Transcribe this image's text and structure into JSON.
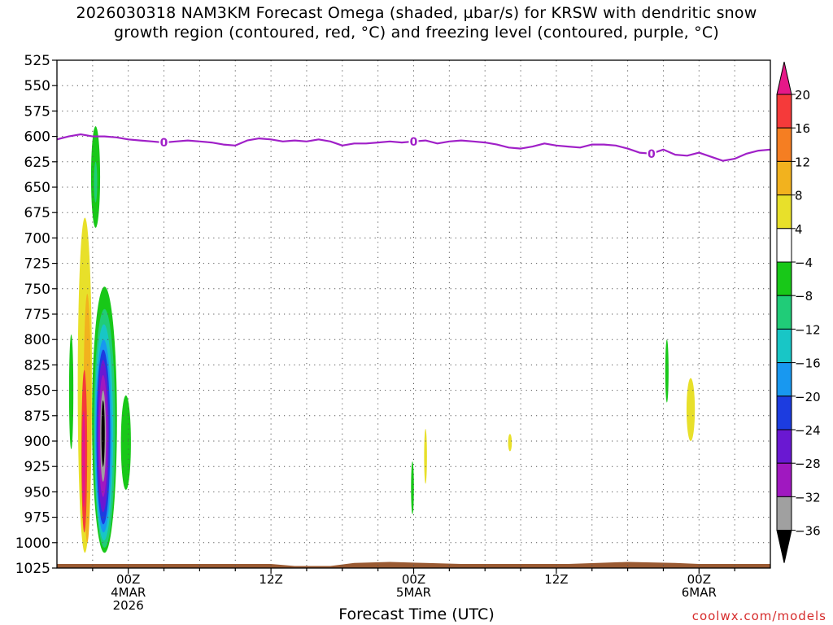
{
  "title_line1": "2026030318 NAM3KM Forecast Omega (shaded, µbar/s) for KRSW with dendritic snow",
  "title_line2": "growth region (contoured, red, °C) and freezing level (contoured, purple, °C)",
  "xaxis_title": "Forecast Time (UTC)",
  "credit": "coolwx.com/models",
  "colors": {
    "freezing_level": "#a020c8",
    "ground": "#9a5a32",
    "grid": "#555555"
  },
  "chart_data": {
    "type": "heatmap",
    "x_range_hours": [
      -3,
      57
    ],
    "y_range_mb": [
      525,
      1025
    ],
    "y_ticks": [
      525,
      550,
      575,
      600,
      625,
      650,
      675,
      700,
      725,
      750,
      775,
      800,
      825,
      850,
      875,
      900,
      925,
      950,
      975,
      1000,
      1025
    ],
    "x_ticks": [
      {
        "hour": 3,
        "label1": "00Z",
        "label2": "4MAR",
        "label3": "2026"
      },
      {
        "hour": 15,
        "label1": "12Z",
        "label2": "",
        "label3": ""
      },
      {
        "hour": 27,
        "label1": "00Z",
        "label2": "5MAR",
        "label3": ""
      },
      {
        "hour": 39,
        "label1": "12Z",
        "label2": "",
        "label3": ""
      },
      {
        "hour": 51,
        "label1": "00Z",
        "label2": "6MAR",
        "label3": ""
      }
    ],
    "colorbar": {
      "labels": [
        20,
        16,
        12,
        8,
        4,
        -4,
        -8,
        -12,
        -16,
        -20,
        -24,
        -28,
        -32,
        -36
      ],
      "colors": [
        "#e61888",
        "#f53a3a",
        "#f57e22",
        "#f2b21e",
        "#e8e02a",
        "#ffffff",
        "#18c818",
        "#20cc78",
        "#18c6c6",
        "#1898f0",
        "#1c3ce0",
        "#6a18d2",
        "#a018c0",
        "#a0a0a0",
        "#000000"
      ]
    },
    "freezing_level": {
      "label": "0",
      "label_hours": [
        6,
        27,
        47
      ],
      "points": [
        [
          -3,
          603
        ],
        [
          -2,
          600
        ],
        [
          -1,
          598
        ],
        [
          0,
          600
        ],
        [
          1,
          600
        ],
        [
          2,
          601
        ],
        [
          3,
          603
        ],
        [
          4,
          604
        ],
        [
          5,
          605
        ],
        [
          6,
          606
        ],
        [
          7,
          605
        ],
        [
          8,
          604
        ],
        [
          9,
          605
        ],
        [
          10,
          606
        ],
        [
          11,
          608
        ],
        [
          12,
          609
        ],
        [
          13,
          604
        ],
        [
          14,
          602
        ],
        [
          15,
          603
        ],
        [
          16,
          605
        ],
        [
          17,
          604
        ],
        [
          18,
          605
        ],
        [
          19,
          603
        ],
        [
          20,
          605
        ],
        [
          21,
          609
        ],
        [
          22,
          607
        ],
        [
          23,
          607
        ],
        [
          24,
          606
        ],
        [
          25,
          605
        ],
        [
          26,
          606
        ],
        [
          27,
          605
        ],
        [
          28,
          604
        ],
        [
          29,
          607
        ],
        [
          30,
          605
        ],
        [
          31,
          604
        ],
        [
          32,
          605
        ],
        [
          33,
          606
        ],
        [
          34,
          608
        ],
        [
          35,
          611
        ],
        [
          36,
          612
        ],
        [
          37,
          610
        ],
        [
          38,
          607
        ],
        [
          39,
          609
        ],
        [
          40,
          610
        ],
        [
          41,
          611
        ],
        [
          42,
          608
        ],
        [
          43,
          608
        ],
        [
          44,
          609
        ],
        [
          45,
          612
        ],
        [
          46,
          616
        ],
        [
          47,
          617
        ],
        [
          48,
          613
        ],
        [
          49,
          618
        ],
        [
          50,
          619
        ],
        [
          51,
          616
        ],
        [
          52,
          620
        ],
        [
          53,
          624
        ],
        [
          54,
          622
        ],
        [
          55,
          617
        ],
        [
          56,
          614
        ],
        [
          57,
          613
        ]
      ]
    },
    "features": [
      {
        "name": "green-band-low-left",
        "value": -6,
        "hc": -1.8,
        "ptop": 795,
        "pbot": 908,
        "hw": 0.18
      },
      {
        "name": "green-upper",
        "value": -6,
        "hc": 0.25,
        "ptop": 590,
        "pbot": 690,
        "hw": 0.38
      },
      {
        "name": "green-upper-core",
        "value": -10,
        "hc": 0.25,
        "ptop": 625,
        "pbot": 665,
        "hw": 0.14
      },
      {
        "name": "yellow-column",
        "value": 6,
        "hc": -0.65,
        "ptop": 680,
        "pbot": 1010,
        "hw": 0.6
      },
      {
        "name": "orange-column",
        "value": 10,
        "hc": -0.45,
        "ptop": 755,
        "pbot": 1000,
        "hw": 0.32
      },
      {
        "name": "red-column",
        "value": 18,
        "hc": -0.7,
        "ptop": 830,
        "pbot": 990,
        "hw": 0.24
      },
      {
        "name": "magenta-column",
        "value": 22,
        "hc": -0.75,
        "ptop": 870,
        "pbot": 965,
        "hw": 0.14
      },
      {
        "name": "green-lower-tail",
        "value": -6,
        "hc": 2.8,
        "ptop": 855,
        "pbot": 948,
        "hw": 0.42
      },
      {
        "name": "green-main",
        "value": -6,
        "hc": 1.0,
        "ptop": 748,
        "pbot": 1010,
        "hw": 1.05
      },
      {
        "name": "teal-main",
        "value": -10,
        "hc": 1.0,
        "ptop": 770,
        "pbot": 1005,
        "hw": 0.9
      },
      {
        "name": "cyan-main",
        "value": -14,
        "hc": 0.95,
        "ptop": 785,
        "pbot": 998,
        "hw": 0.78
      },
      {
        "name": "lightblue-main",
        "value": -18,
        "hc": 0.92,
        "ptop": 800,
        "pbot": 990,
        "hw": 0.68
      },
      {
        "name": "blue-main",
        "value": -22,
        "hc": 0.9,
        "ptop": 810,
        "pbot": 982,
        "hw": 0.58
      },
      {
        "name": "indigo-main",
        "value": -26,
        "hc": 0.88,
        "ptop": 820,
        "pbot": 970,
        "hw": 0.48
      },
      {
        "name": "purple-main",
        "value": -30,
        "hc": 0.88,
        "ptop": 835,
        "pbot": 955,
        "hw": 0.36
      },
      {
        "name": "gray-main",
        "value": -34,
        "hc": 0.88,
        "ptop": 850,
        "pbot": 940,
        "hw": 0.24
      },
      {
        "name": "black-core",
        "value": -38,
        "hc": 0.88,
        "ptop": 860,
        "pbot": 925,
        "hw": 0.14
      },
      {
        "name": "green-5mar",
        "value": -6,
        "hc": 26.9,
        "ptop": 920,
        "pbot": 972,
        "hw": 0.12
      },
      {
        "name": "yellow-5mar-a",
        "value": 6,
        "hc": 28.0,
        "ptop": 888,
        "pbot": 942,
        "hw": 0.12
      },
      {
        "name": "yellow-5mar-b",
        "value": 6,
        "hc": 35.1,
        "ptop": 893,
        "pbot": 910,
        "hw": 0.16
      },
      {
        "name": "green-6mar",
        "value": -6,
        "hc": 48.3,
        "ptop": 800,
        "pbot": 862,
        "hw": 0.14
      },
      {
        "name": "yellow-6mar",
        "value": 6,
        "hc": 50.3,
        "ptop": 838,
        "pbot": 900,
        "hw": 0.35
      }
    ],
    "ground": {
      "points": [
        [
          -3,
          1021
        ],
        [
          3,
          1021
        ],
        [
          9,
          1021
        ],
        [
          15,
          1021
        ],
        [
          17,
          1023
        ],
        [
          20,
          1023
        ],
        [
          22,
          1020
        ],
        [
          25,
          1019
        ],
        [
          28,
          1020
        ],
        [
          31,
          1021
        ],
        [
          40,
          1021
        ],
        [
          45,
          1019
        ],
        [
          49,
          1020
        ],
        [
          51,
          1021
        ],
        [
          57,
          1021
        ]
      ]
    }
  }
}
